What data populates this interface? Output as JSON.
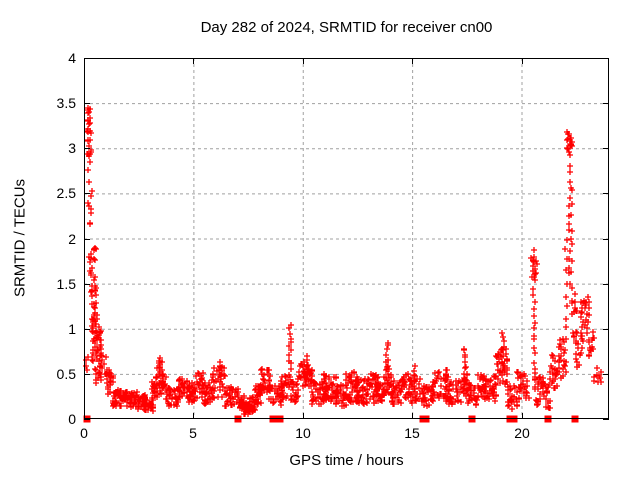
{
  "chart_data": {
    "type": "scatter",
    "title": "Day 282 of 2024, SRMTID for receiver cn00",
    "xlabel": "GPS time / hours",
    "ylabel": "SRMTID / TECUs",
    "xlim": [
      0,
      24
    ],
    "ylim": [
      0,
      4
    ],
    "xticks": [
      0,
      5,
      10,
      15,
      20
    ],
    "yticks": [
      0,
      0.5,
      1,
      1.5,
      2,
      2.5,
      3,
      3.5,
      4
    ],
    "grid": true,
    "legend_position": "none",
    "marker": "plus",
    "point_color": "#ff0000",
    "grid_color": "#a0a0a0",
    "axis_color": "#000000",
    "background_color": "#ffffff",
    "seed": 42,
    "bands_format": "[t_start_hours, t_end_hours, n_points, y_min_TECUs, y_max_TECUs]",
    "bands": [
      [
        0.06,
        0.18,
        4,
        0.25,
        0.9
      ],
      [
        0.15,
        0.32,
        26,
        2.9,
        3.52
      ],
      [
        0.18,
        0.36,
        6,
        2.38,
        2.9
      ],
      [
        0.2,
        0.4,
        5,
        1.9,
        2.36
      ],
      [
        0.24,
        0.55,
        22,
        1.35,
        1.95
      ],
      [
        0.3,
        0.65,
        26,
        0.95,
        1.42
      ],
      [
        0.35,
        0.8,
        30,
        0.62,
        1.02
      ],
      [
        0.5,
        1.0,
        28,
        0.4,
        0.78
      ],
      [
        0.9,
        1.35,
        24,
        0.25,
        0.55
      ],
      [
        1.3,
        1.85,
        42,
        0.14,
        0.33
      ],
      [
        1.85,
        2.45,
        50,
        0.13,
        0.3
      ],
      [
        2.45,
        2.95,
        40,
        0.1,
        0.27
      ],
      [
        2.9,
        3.15,
        16,
        0.09,
        0.22
      ],
      [
        3.1,
        3.45,
        22,
        0.2,
        0.5
      ],
      [
        3.3,
        3.6,
        16,
        0.35,
        0.68
      ],
      [
        3.5,
        3.8,
        16,
        0.25,
        0.5
      ],
      [
        3.75,
        4.35,
        40,
        0.14,
        0.35
      ],
      [
        4.3,
        4.75,
        28,
        0.18,
        0.45
      ],
      [
        4.7,
        5.1,
        28,
        0.18,
        0.4
      ],
      [
        5.05,
        5.45,
        24,
        0.22,
        0.52
      ],
      [
        5.4,
        5.8,
        24,
        0.16,
        0.4
      ],
      [
        5.75,
        6.45,
        36,
        0.22,
        0.58
      ],
      [
        6.4,
        7.1,
        40,
        0.14,
        0.36
      ],
      [
        7.1,
        7.35,
        24,
        0.1,
        0.26
      ],
      [
        7.3,
        7.6,
        30,
        0.05,
        0.18
      ],
      [
        7.55,
        7.85,
        28,
        0.07,
        0.24
      ],
      [
        7.8,
        8.1,
        24,
        0.15,
        0.38
      ],
      [
        8.05,
        8.5,
        32,
        0.28,
        0.56
      ],
      [
        8.45,
        9.05,
        34,
        0.15,
        0.38
      ],
      [
        9.0,
        9.35,
        22,
        0.22,
        0.48
      ],
      [
        9.45,
        9.8,
        22,
        0.18,
        0.45
      ],
      [
        9.8,
        10.45,
        40,
        0.35,
        0.65
      ],
      [
        10.4,
        10.95,
        32,
        0.16,
        0.42
      ],
      [
        10.9,
        11.55,
        45,
        0.18,
        0.5
      ],
      [
        11.5,
        12.0,
        34,
        0.14,
        0.38
      ],
      [
        11.95,
        12.5,
        40,
        0.18,
        0.52
      ],
      [
        12.45,
        12.95,
        38,
        0.16,
        0.45
      ],
      [
        12.9,
        13.45,
        38,
        0.18,
        0.5
      ],
      [
        13.4,
        13.75,
        22,
        0.18,
        0.42
      ],
      [
        13.7,
        14.05,
        18,
        0.25,
        0.6
      ],
      [
        14.0,
        14.55,
        32,
        0.16,
        0.42
      ],
      [
        14.5,
        14.9,
        24,
        0.22,
        0.5
      ],
      [
        14.85,
        15.35,
        28,
        0.18,
        0.48
      ],
      [
        15.3,
        15.95,
        32,
        0.14,
        0.38
      ],
      [
        15.9,
        16.7,
        40,
        0.2,
        0.52
      ],
      [
        16.65,
        17.25,
        36,
        0.16,
        0.42
      ],
      [
        17.25,
        17.6,
        20,
        0.25,
        0.5
      ],
      [
        17.55,
        18.0,
        26,
        0.16,
        0.38
      ],
      [
        17.95,
        18.5,
        34,
        0.22,
        0.5
      ],
      [
        18.45,
        18.85,
        26,
        0.2,
        0.48
      ],
      [
        18.8,
        19.35,
        40,
        0.35,
        0.8
      ],
      [
        19.35,
        19.8,
        26,
        0.1,
        0.38
      ],
      [
        19.8,
        20.35,
        32,
        0.2,
        0.55
      ],
      [
        20.45,
        20.7,
        12,
        1.55,
        1.88
      ],
      [
        20.6,
        21.0,
        24,
        0.15,
        0.48
      ],
      [
        20.95,
        21.35,
        18,
        0.1,
        0.4
      ],
      [
        21.3,
        21.75,
        28,
        0.33,
        0.72
      ],
      [
        21.7,
        22.0,
        18,
        0.45,
        0.9
      ],
      [
        22.05,
        22.3,
        16,
        2.95,
        3.2
      ],
      [
        22.3,
        22.55,
        14,
        0.8,
        1.45
      ],
      [
        22.45,
        22.8,
        14,
        0.55,
        0.9
      ],
      [
        22.7,
        23.1,
        30,
        0.85,
        1.35
      ],
      [
        23.05,
        23.35,
        12,
        0.68,
        1.0
      ],
      [
        23.3,
        23.65,
        12,
        0.38,
        0.58
      ]
    ],
    "spike_columns_format": "[t_hours, n_points, y_bottom_TECUs, y_top_TECUs, t_jitter_hours]",
    "spike_columns": [
      [
        3.45,
        8,
        0.3,
        0.66,
        0.05
      ],
      [
        6.25,
        7,
        0.3,
        0.62,
        0.05
      ],
      [
        9.42,
        15,
        0.35,
        1.05,
        0.06
      ],
      [
        10.15,
        7,
        0.4,
        0.68,
        0.06
      ],
      [
        13.85,
        13,
        0.3,
        0.85,
        0.06
      ],
      [
        15.12,
        7,
        0.3,
        0.56,
        0.05
      ],
      [
        16.55,
        8,
        0.3,
        0.55,
        0.05
      ],
      [
        17.4,
        13,
        0.3,
        0.78,
        0.06
      ],
      [
        19.15,
        10,
        0.5,
        0.95,
        0.07
      ],
      [
        20.58,
        22,
        0.35,
        1.88,
        0.06
      ],
      [
        22.05,
        13,
        0.5,
        2.0,
        0.05
      ],
      [
        22.2,
        18,
        1.5,
        3.1,
        0.05
      ],
      [
        22.3,
        9,
        1.3,
        2.55,
        0.04
      ]
    ],
    "zero_value_markers_hours": [
      0.12,
      7.05,
      8.62,
      8.74,
      8.86,
      8.98,
      15.5,
      15.63,
      17.75,
      19.48,
      19.66,
      21.22,
      22.45
    ],
    "y_max_observed": 3.5,
    "y_min_observed": 0
  }
}
